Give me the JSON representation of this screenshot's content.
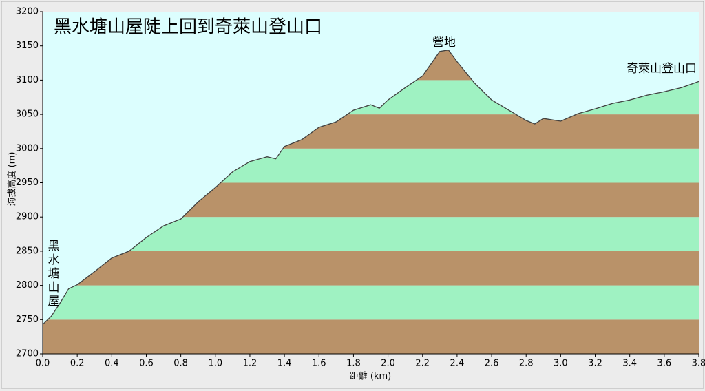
{
  "chart_data": {
    "type": "area",
    "title": "黑水塘山屋陡上回到奇萊山登山口",
    "x_label": "距離 (km)",
    "y_label": "海拔高度 (m)",
    "annotations": [
      "營地",
      "奇萊山登山口",
      "黑水塘山屋"
    ],
    "x": [
      0,
      0.05,
      0.1,
      0.15,
      0.2,
      0.3,
      0.4,
      0.5,
      0.6,
      0.7,
      0.8,
      0.9,
      1.0,
      1.1,
      1.2,
      1.3,
      1.35,
      1.4,
      1.5,
      1.6,
      1.7,
      1.8,
      1.9,
      1.95,
      2.0,
      2.1,
      2.2,
      2.3,
      2.35,
      2.4,
      2.5,
      2.6,
      2.7,
      2.8,
      2.85,
      2.9,
      3.0,
      3.1,
      3.2,
      3.3,
      3.4,
      3.5,
      3.6,
      3.7,
      3.8
    ],
    "values": [
      2743,
      2755,
      2774,
      2795,
      2801,
      2820,
      2840,
      2850,
      2870,
      2887,
      2897,
      2922,
      2943,
      2966,
      2981,
      2988,
      2985,
      3003,
      3013,
      3031,
      3039,
      3056,
      3064,
      3059,
      3071,
      3089,
      3106,
      3142,
      3144,
      3127,
      3096,
      3071,
      3056,
      3041,
      3036,
      3044,
      3040,
      3051,
      3058,
      3066,
      3071,
      3078,
      3083,
      3089,
      3098
    ],
    "line_color": "#404040",
    "band_colors": [
      "#b99269",
      "#9ff2c2"
    ],
    "background": "#dcfefe",
    "xlim": [
      0,
      3.8
    ],
    "xticks": [
      {
        "value": 0,
        "label": "0.0"
      },
      0.2,
      0.4,
      0.6,
      0.8,
      {
        "value": 1,
        "label": "1.0"
      },
      1.2,
      1.4,
      1.6,
      1.8,
      {
        "value": 2,
        "label": "2.0"
      },
      2.2,
      2.4,
      2.6,
      2.8,
      {
        "value": 3,
        "label": "3.0"
      },
      3.2,
      3.4,
      3.6,
      3.8
    ],
    "ylim": [
      2700,
      3200
    ],
    "yticks": [
      2700,
      2750,
      2800,
      2850,
      2900,
      2950,
      3000,
      3050,
      3100,
      3150,
      3200
    ]
  }
}
